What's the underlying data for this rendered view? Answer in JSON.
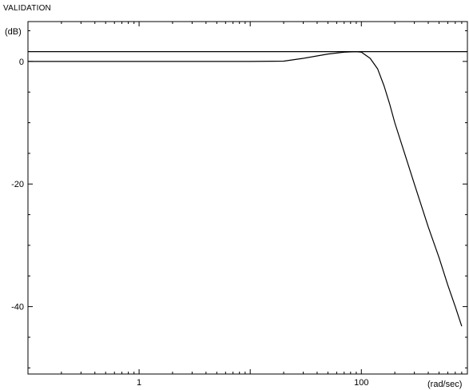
{
  "chart_data": {
    "type": "line",
    "title": "VALIDATION",
    "xlabel": "(rad/sec)",
    "ylabel": "(dB)",
    "x_scale": "log",
    "xlim": [
      0.1,
      900
    ],
    "ylim": [
      -51,
      6.5
    ],
    "x_ticks": [
      {
        "value": 1,
        "label": "1"
      },
      {
        "value": 100,
        "label": "100"
      }
    ],
    "y_ticks": [
      {
        "value": 0,
        "label": "0"
      },
      {
        "value": -20,
        "label": "-20"
      },
      {
        "value": -40,
        "label": "-40"
      }
    ],
    "grid": false,
    "series": [
      {
        "kind": "reference",
        "x": [
          0.1,
          900
        ],
        "y": [
          1.6,
          1.6
        ]
      },
      {
        "kind": "response",
        "x": [
          0.1,
          1,
          5,
          10,
          20,
          30,
          50,
          70,
          90,
          100,
          120,
          140,
          160,
          180,
          200,
          250,
          300,
          400,
          500,
          600,
          700,
          800
        ],
        "y": [
          0,
          0,
          0,
          0,
          0.05,
          0.5,
          1.2,
          1.5,
          1.6,
          1.5,
          0.5,
          -1.2,
          -4,
          -7,
          -10,
          -15.5,
          -20,
          -27,
          -32,
          -36.5,
          -40,
          -43.2
        ]
      }
    ]
  }
}
